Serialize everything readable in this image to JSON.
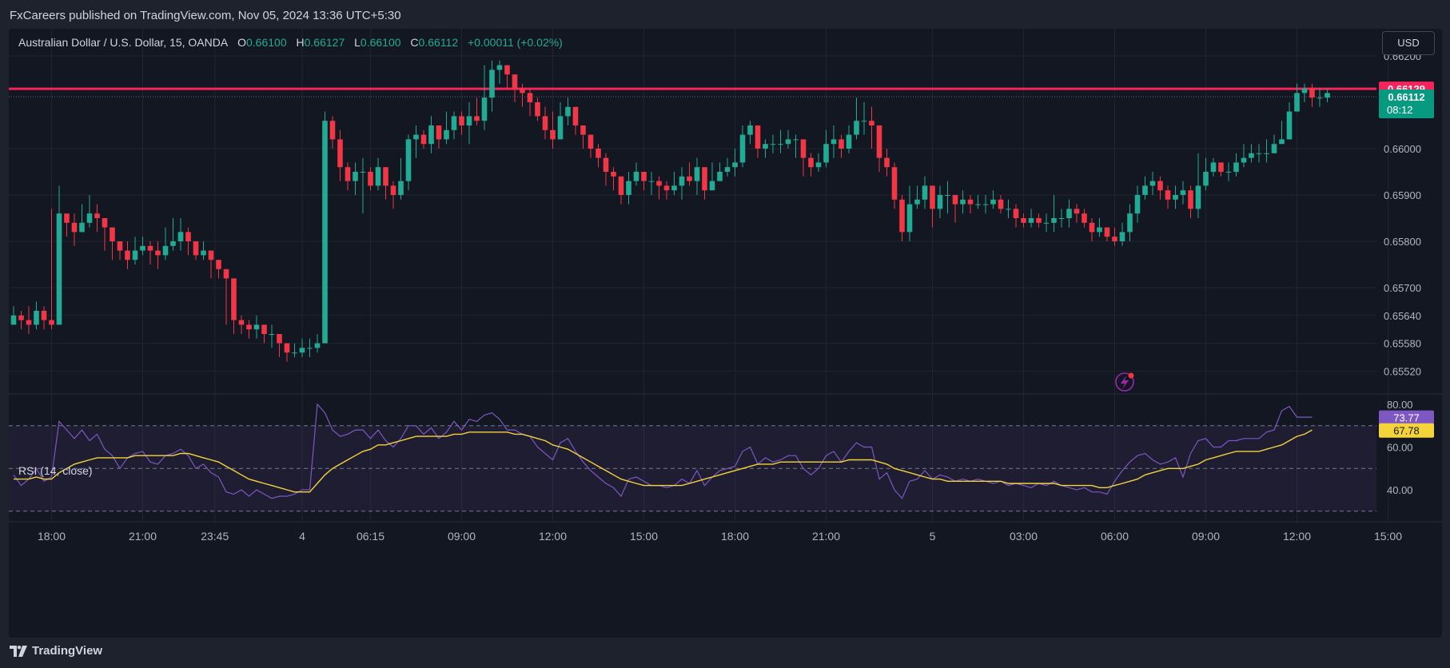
{
  "header": {
    "published": "FxCareers published on TradingView.com, Nov 05, 2024 13:36 UTC+5:30"
  },
  "legend": {
    "symbol": "Australian Dollar / U.S. Dollar, 15, OANDA",
    "o_label": "O",
    "o_value": "0.66100",
    "h_label": "H",
    "h_value": "0.66127",
    "l_label": "L",
    "l_value": "0.66100",
    "c_label": "C",
    "c_value": "0.66112",
    "change": "+0.00011 (+0.02%)"
  },
  "currency_button": "USD",
  "footer": {
    "brand": "TradingView"
  },
  "colors": {
    "up": "#22ab94",
    "down": "#f23645",
    "hline": "#f7245c",
    "rsi": "#7e57c2",
    "rsi_ma": "#f5d33b",
    "badge_price": "#089981"
  },
  "icons": {
    "alert": "lightning-icon",
    "logo": "tradingview-logo-icon"
  },
  "chart_data": [
    {
      "type": "candlestick",
      "x_ticks": [
        "18:00",
        "21:00",
        "23:45",
        "4",
        "06:15",
        "09:00",
        "12:00",
        "15:00",
        "18:00",
        "21:00",
        "5",
        "03:00",
        "06:00",
        "09:00",
        "12:00",
        "15:00"
      ],
      "y_ticks": [
        "0.66200",
        "0.66000",
        "0.65900",
        "0.65800",
        "0.65700",
        "0.65640",
        "0.65580",
        "0.65520"
      ],
      "y_tick_values": [
        0.662,
        0.66,
        0.659,
        0.658,
        0.657,
        0.6564,
        0.6558,
        0.6552
      ],
      "horizontal_line": {
        "value": 0.66129,
        "label": "0.66129"
      },
      "last_price": {
        "value": 0.66112,
        "label": "0.66112",
        "countdown": "08:12"
      },
      "x_tick_index": [
        5,
        17,
        26.5,
        38,
        47,
        59,
        71,
        83,
        95,
        107,
        121,
        133,
        145,
        157,
        169,
        181
      ],
      "bar_count": 176,
      "close": [
        0.6564,
        0.6563,
        0.6562,
        0.6565,
        0.6563,
        0.6562,
        0.6586,
        0.6584,
        0.6582,
        0.6584,
        0.6586,
        0.6585,
        0.6583,
        0.658,
        0.6578,
        0.6576,
        0.6578,
        0.6579,
        0.6578,
        0.6577,
        0.6579,
        0.658,
        0.6582,
        0.658,
        0.6577,
        0.6578,
        0.6576,
        0.6574,
        0.6572,
        0.6563,
        0.6562,
        0.6561,
        0.6562,
        0.656,
        0.656,
        0.6558,
        0.6556,
        0.6556,
        0.6557,
        0.6557,
        0.6558,
        0.6606,
        0.6602,
        0.6596,
        0.6593,
        0.6595,
        0.6595,
        0.6592,
        0.6596,
        0.6592,
        0.659,
        0.6593,
        0.6602,
        0.6603,
        0.6601,
        0.6605,
        0.6602,
        0.6604,
        0.6607,
        0.6605,
        0.6607,
        0.6606,
        0.6611,
        0.6617,
        0.6618,
        0.6616,
        0.6613,
        0.6612,
        0.661,
        0.6607,
        0.6604,
        0.6602,
        0.6607,
        0.6609,
        0.6605,
        0.6603,
        0.66,
        0.6598,
        0.6595,
        0.6594,
        0.659,
        0.6593,
        0.6595,
        0.6593,
        0.6593,
        0.6592,
        0.6591,
        0.6592,
        0.6594,
        0.6593,
        0.6596,
        0.6591,
        0.6593,
        0.6595,
        0.6596,
        0.6597,
        0.6603,
        0.6605,
        0.66,
        0.6601,
        0.6601,
        0.6601,
        0.6602,
        0.6602,
        0.6598,
        0.6596,
        0.6597,
        0.6601,
        0.6602,
        0.66,
        0.6603,
        0.6606,
        0.6606,
        0.6605,
        0.6598,
        0.6596,
        0.6589,
        0.6582,
        0.6588,
        0.6589,
        0.6592,
        0.6587,
        0.659,
        0.659,
        0.6588,
        0.6589,
        0.6588,
        0.6588,
        0.6588,
        0.6589,
        0.6587,
        0.6587,
        0.6585,
        0.6584,
        0.6585,
        0.6584,
        0.6584,
        0.6585,
        0.6585,
        0.6587,
        0.6586,
        0.6584,
        0.6582,
        0.6583,
        0.6581,
        0.658,
        0.6582,
        0.6586,
        0.659,
        0.6592,
        0.6593,
        0.6591,
        0.6589,
        0.659,
        0.6591,
        0.6587,
        0.6592,
        0.6595,
        0.6597,
        0.6595,
        0.6595,
        0.6597,
        0.6598,
        0.6599,
        0.6599,
        0.6599,
        0.6601,
        0.6602,
        0.6608,
        0.6612,
        0.6613,
        0.6611,
        0.6611,
        0.6612
      ],
      "high": [
        0.6566,
        0.6565,
        0.6566,
        0.6567,
        0.6566,
        0.6587,
        0.6592,
        0.6586,
        0.6586,
        0.6588,
        0.659,
        0.6588,
        0.6584,
        0.6582,
        0.658,
        0.658,
        0.6581,
        0.6581,
        0.658,
        0.658,
        0.6583,
        0.6585,
        0.6585,
        0.6583,
        0.6579,
        0.658,
        0.6578,
        0.6576,
        0.6573,
        0.6566,
        0.6564,
        0.6563,
        0.6564,
        0.6562,
        0.6562,
        0.6559,
        0.6558,
        0.6558,
        0.6559,
        0.6559,
        0.656,
        0.6608,
        0.6607,
        0.6604,
        0.6597,
        0.6597,
        0.6598,
        0.6596,
        0.6598,
        0.6596,
        0.6593,
        0.6598,
        0.6603,
        0.6605,
        0.6604,
        0.6607,
        0.6605,
        0.6608,
        0.6608,
        0.6608,
        0.661,
        0.6611,
        0.6618,
        0.6619,
        0.6619,
        0.6618,
        0.6616,
        0.6614,
        0.6613,
        0.6611,
        0.6609,
        0.6608,
        0.661,
        0.6611,
        0.6608,
        0.6605,
        0.6603,
        0.6601,
        0.6599,
        0.6596,
        0.6594,
        0.6595,
        0.6597,
        0.6595,
        0.6595,
        0.6594,
        0.6593,
        0.6595,
        0.6596,
        0.6597,
        0.6598,
        0.6595,
        0.6597,
        0.6597,
        0.6598,
        0.66,
        0.6605,
        0.6606,
        0.6605,
        0.6602,
        0.6603,
        0.6604,
        0.6604,
        0.6603,
        0.6602,
        0.6599,
        0.6599,
        0.6604,
        0.6605,
        0.6603,
        0.6605,
        0.6611,
        0.661,
        0.6609,
        0.6604,
        0.66,
        0.6597,
        0.659,
        0.6592,
        0.6592,
        0.6594,
        0.6592,
        0.6592,
        0.6593,
        0.659,
        0.6591,
        0.659,
        0.659,
        0.659,
        0.6591,
        0.659,
        0.6589,
        0.6588,
        0.6586,
        0.6587,
        0.6586,
        0.6586,
        0.659,
        0.6587,
        0.6589,
        0.6588,
        0.6587,
        0.6585,
        0.6585,
        0.6583,
        0.6583,
        0.6584,
        0.6588,
        0.6592,
        0.6594,
        0.6595,
        0.6594,
        0.6592,
        0.6592,
        0.6593,
        0.6592,
        0.6599,
        0.6598,
        0.6598,
        0.6597,
        0.6597,
        0.6599,
        0.6601,
        0.6601,
        0.6601,
        0.6602,
        0.6603,
        0.6606,
        0.661,
        0.6614,
        0.6614,
        0.6614,
        0.6613,
        0.6613
      ],
      "low": [
        0.6562,
        0.6561,
        0.656,
        0.6561,
        0.6561,
        0.6561,
        0.6583,
        0.6581,
        0.6579,
        0.6582,
        0.6583,
        0.6582,
        0.6578,
        0.6576,
        0.6576,
        0.6574,
        0.6575,
        0.6577,
        0.6575,
        0.6574,
        0.6576,
        0.6578,
        0.6578,
        0.6577,
        0.6576,
        0.6576,
        0.6572,
        0.6572,
        0.6562,
        0.656,
        0.656,
        0.6559,
        0.6559,
        0.6558,
        0.6557,
        0.6555,
        0.6554,
        0.6555,
        0.6555,
        0.6555,
        0.6556,
        0.6558,
        0.66,
        0.6593,
        0.6591,
        0.659,
        0.6586,
        0.6591,
        0.6591,
        0.6589,
        0.6587,
        0.6589,
        0.6591,
        0.6598,
        0.66,
        0.6599,
        0.66,
        0.6601,
        0.6602,
        0.6603,
        0.6601,
        0.6605,
        0.6604,
        0.6608,
        0.6614,
        0.6613,
        0.661,
        0.6609,
        0.6607,
        0.6606,
        0.6602,
        0.66,
        0.6602,
        0.6605,
        0.6603,
        0.66,
        0.6598,
        0.6596,
        0.6592,
        0.6591,
        0.6588,
        0.6588,
        0.6592,
        0.6591,
        0.659,
        0.6589,
        0.6589,
        0.659,
        0.6589,
        0.6592,
        0.659,
        0.6589,
        0.6591,
        0.6593,
        0.6594,
        0.6594,
        0.6596,
        0.6601,
        0.6598,
        0.6598,
        0.6599,
        0.6599,
        0.66,
        0.6598,
        0.6594,
        0.6594,
        0.6595,
        0.6596,
        0.6598,
        0.6598,
        0.6599,
        0.6602,
        0.6603,
        0.66,
        0.6595,
        0.6594,
        0.6587,
        0.658,
        0.658,
        0.6587,
        0.6587,
        0.6583,
        0.6585,
        0.6586,
        0.6584,
        0.6586,
        0.6586,
        0.6587,
        0.6586,
        0.6587,
        0.6586,
        0.6585,
        0.6583,
        0.6583,
        0.6583,
        0.6583,
        0.6582,
        0.6582,
        0.6583,
        0.6583,
        0.6584,
        0.6583,
        0.658,
        0.6581,
        0.658,
        0.6579,
        0.6579,
        0.658,
        0.6584,
        0.6589,
        0.659,
        0.6589,
        0.6587,
        0.6587,
        0.6588,
        0.6585,
        0.6585,
        0.6591,
        0.6594,
        0.6594,
        0.6593,
        0.6594,
        0.6596,
        0.6597,
        0.6597,
        0.6597,
        0.6599,
        0.6601,
        0.6602,
        0.6608,
        0.661,
        0.6609,
        0.6609,
        0.661
      ]
    },
    {
      "type": "line",
      "title": "RSI (14, close)",
      "y_ticks": [
        "80.00",
        "60.00",
        "40.00"
      ],
      "y_tick_values": [
        80,
        60,
        40
      ],
      "bands": [
        70,
        50,
        30
      ],
      "last_rsi": {
        "value": 73.77,
        "label": "73.77"
      },
      "last_ma": {
        "value": 67.78,
        "label": "67.78"
      },
      "series": [
        {
          "values": [
            47,
            42,
            45,
            50,
            44,
            46,
            72,
            68,
            64,
            68,
            63,
            66,
            59,
            56,
            50,
            55,
            57,
            58,
            53,
            52,
            56,
            57,
            59,
            56,
            50,
            52,
            48,
            46,
            39,
            38,
            40,
            37,
            40,
            38,
            36,
            37,
            37,
            38,
            40,
            40,
            80,
            76,
            68,
            65,
            66,
            68,
            68,
            64,
            68,
            63,
            60,
            64,
            70,
            70,
            66,
            69,
            64,
            67,
            72,
            68,
            73,
            72,
            75,
            76,
            73,
            68,
            68,
            66,
            65,
            60,
            57,
            54,
            62,
            64,
            58,
            53,
            49,
            46,
            43,
            41,
            37,
            45,
            46,
            44,
            42,
            42,
            41,
            42,
            45,
            43,
            49,
            42,
            46,
            49,
            50,
            51,
            58,
            60,
            52,
            55,
            53,
            54,
            56,
            56,
            50,
            47,
            50,
            56,
            58,
            53,
            58,
            62,
            60,
            60,
            45,
            48,
            40,
            36,
            44,
            45,
            49,
            45,
            47,
            46,
            44,
            45,
            44,
            45,
            44,
            43,
            44,
            42,
            43,
            42,
            41,
            43,
            42,
            44,
            42,
            41,
            40,
            41,
            39,
            39,
            38,
            44,
            49,
            53,
            56,
            57,
            54,
            52,
            53,
            55,
            46,
            57,
            63,
            64,
            60,
            60,
            63,
            63,
            64,
            64,
            64,
            67,
            68,
            77,
            79,
            74,
            74,
            74
          ]
        },
        {
          "values": [
            45,
            45,
            45,
            46,
            45,
            45,
            48,
            50,
            52,
            53,
            54,
            55,
            55,
            55,
            55,
            55,
            56,
            56,
            56,
            56,
            56,
            56,
            57,
            57,
            56,
            55,
            54,
            53,
            51,
            49,
            47,
            45,
            44,
            43,
            42,
            41,
            40,
            39,
            39,
            39,
            43,
            47,
            50,
            52,
            54,
            56,
            58,
            59,
            61,
            61,
            62,
            63,
            64,
            65,
            65,
            65,
            65,
            65,
            66,
            66,
            67,
            67,
            67,
            67,
            67,
            67,
            66,
            66,
            65,
            64,
            63,
            61,
            60,
            59,
            57,
            55,
            53,
            51,
            49,
            47,
            45,
            44,
            43,
            42,
            42,
            42,
            42,
            42,
            42,
            43,
            44,
            45,
            46,
            47,
            48,
            49,
            50,
            51,
            52,
            52,
            52,
            53,
            53,
            53,
            53,
            53,
            53,
            53,
            53,
            53,
            54,
            54,
            54,
            54,
            53,
            52,
            50,
            49,
            48,
            47,
            46,
            45,
            45,
            44,
            44,
            44,
            44,
            44,
            44,
            44,
            44,
            43,
            43,
            43,
            43,
            43,
            43,
            43,
            42,
            42,
            42,
            42,
            42,
            41,
            41,
            42,
            43,
            44,
            45,
            47,
            48,
            49,
            50,
            50,
            50,
            51,
            52,
            54,
            55,
            56,
            57,
            58,
            58,
            58,
            58,
            59,
            60,
            61,
            63,
            65,
            66,
            68
          ]
        }
      ]
    }
  ]
}
